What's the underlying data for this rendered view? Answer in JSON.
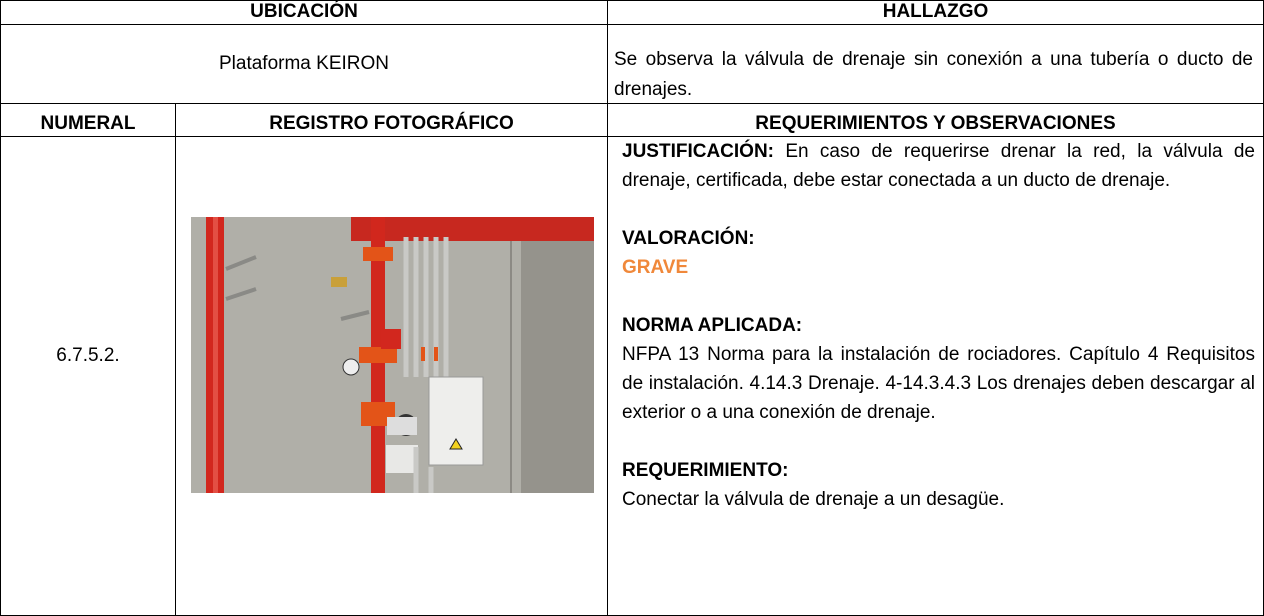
{
  "header": {
    "location_label": "UBICACIÓN",
    "finding_label": "HALLAZGO"
  },
  "location": "Plataforma KEIRON",
  "finding": "Se observa la válvula de drenaje sin conexión a una tubería o ducto de drenajes.",
  "columns": [
    "NUMERAL",
    "REGISTRO FOTOGRÁFICO",
    "REQUERIMIENTOS Y OBSERVACIONES"
  ],
  "numeral": "6.7.5.2.",
  "observations": {
    "justification_label": "JUSTIFICACIÓN:",
    "justification_text": "En caso de requerirse drenar la red, la válvula de drenaje, certificada, debe estar conectada a un ducto de drenaje.",
    "rating_label": "VALORACIÓN:",
    "rating": "GRAVE",
    "standard_label": "NORMA APLICADA:",
    "standard_text": "NFPA 13 Norma para la instalación de rociadores. Capítulo 4 Requisitos de instalación. 4.14.3 Drenaje. 4-14.3.4.3 Los drenajes deben descargar al exterior o a una conexión de drenaje.",
    "requirement_label": "REQUERIMIENTO:",
    "requirement_text": "Conectar la válvula de drenaje a un desagüe."
  }
}
